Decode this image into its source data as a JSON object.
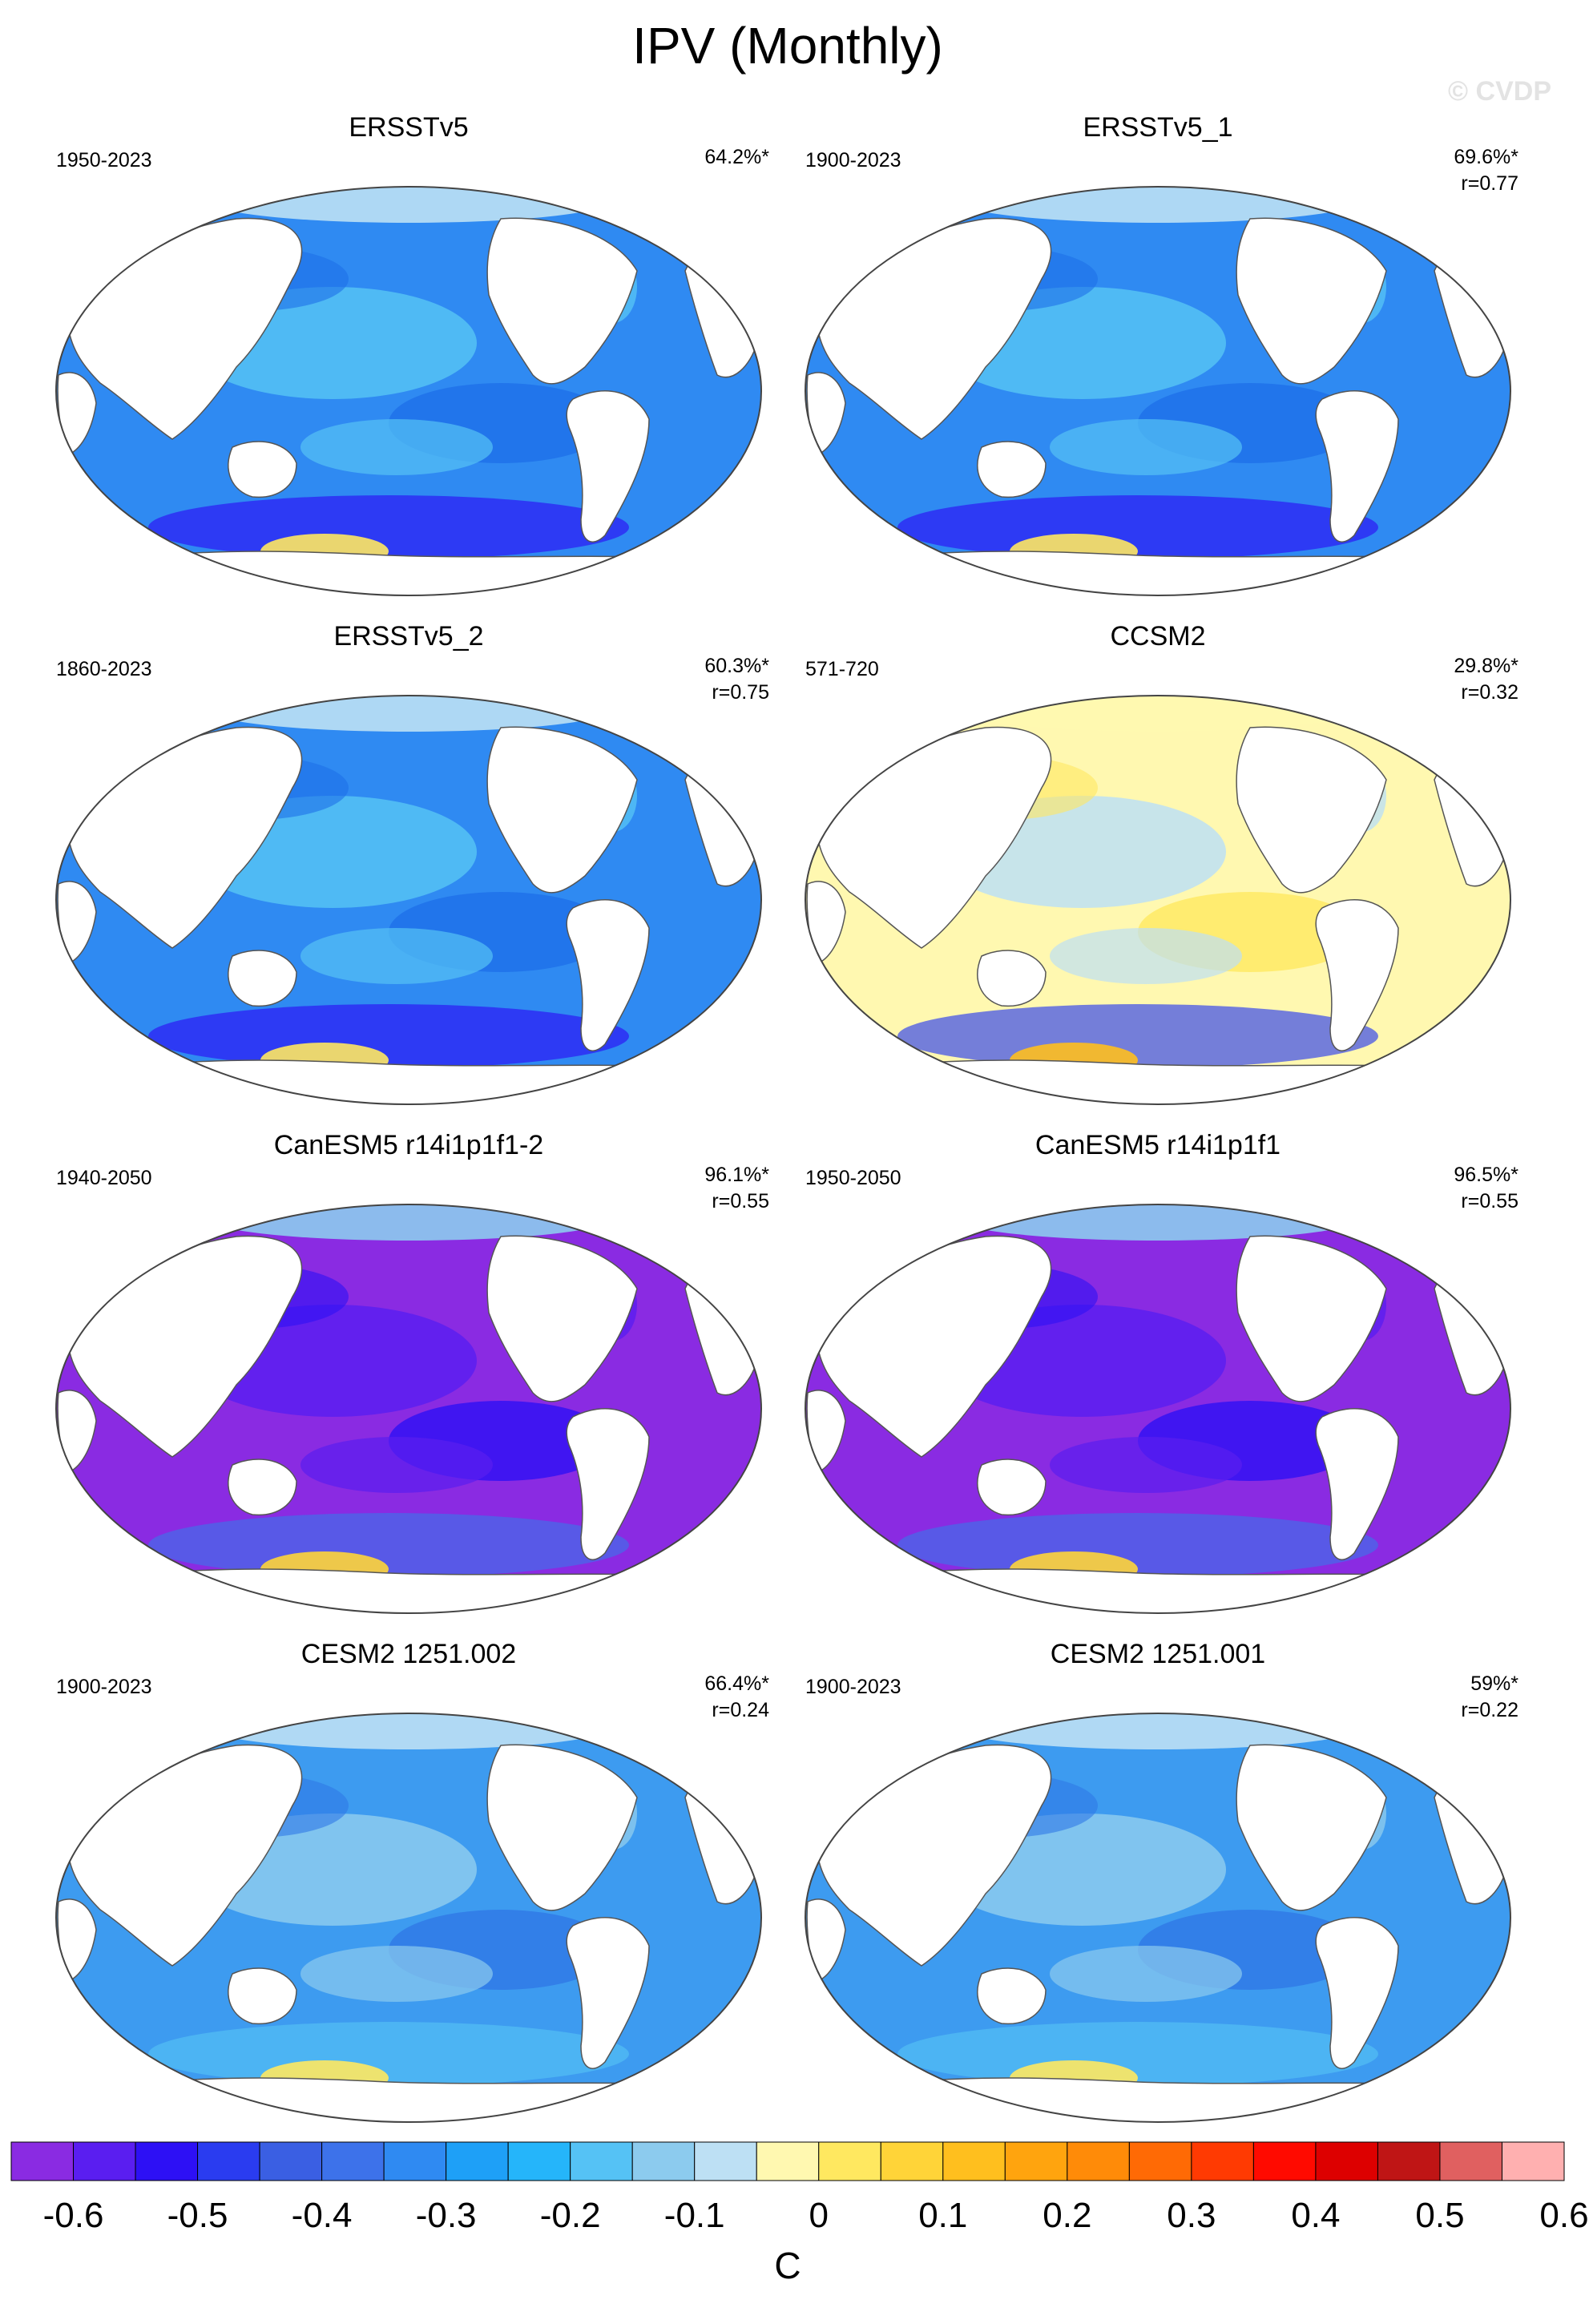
{
  "title": "IPV (Monthly)",
  "watermark": "© CVDP",
  "panels": [
    {
      "name": "ERSSTv5",
      "years": "1950-2023",
      "pct": "64.2%*",
      "r": "",
      "theme": "blue"
    },
    {
      "name": "ERSSTv5_1",
      "years": "1900-2023",
      "pct": "69.6%*",
      "r": "r=0.77",
      "theme": "blue"
    },
    {
      "name": "ERSSTv5_2",
      "years": "1860-2023",
      "pct": "60.3%*",
      "r": "r=0.75",
      "theme": "blue"
    },
    {
      "name": "CCSM2",
      "years": "571-720",
      "pct": "29.8%*",
      "r": "r=0.32",
      "theme": "yellow"
    },
    {
      "name": "CanESM5 r14i1p1f1-2",
      "years": "1940-2050",
      "pct": "96.1%*",
      "r": "r=0.55",
      "theme": "purple"
    },
    {
      "name": "CanESM5 r14i1p1f1",
      "years": "1950-2050",
      "pct": "96.5%*",
      "r": "r=0.55",
      "theme": "purple"
    },
    {
      "name": "CESM2 1251.002",
      "years": "1900-2023",
      "pct": "66.4%*",
      "r": "r=0.24",
      "theme": "lightblue"
    },
    {
      "name": "CESM2 1251.001",
      "years": "1900-2023",
      "pct": "59%*",
      "r": "r=0.22",
      "theme": "lightblue"
    }
  ],
  "colorbar": {
    "colors": [
      "#8a2be2",
      "#5a1ef0",
      "#2d10f5",
      "#2a3cf0",
      "#3a5fe3",
      "#3d72ea",
      "#2f8af2",
      "#1ea0f7",
      "#25b5fa",
      "#55c2f5",
      "#8ccbee",
      "#bde0f4",
      "#fff8b0",
      "#ffe860",
      "#ffd438",
      "#ffbf1e",
      "#ffa40e",
      "#ff8b08",
      "#ff6a05",
      "#ff3a02",
      "#ff0a00",
      "#dd0000",
      "#bf1515",
      "#e06060",
      "#ffb0b0"
    ],
    "ticks": [
      "-0.6",
      "-0.5",
      "-0.4",
      "-0.3",
      "-0.2",
      "-0.1",
      "0",
      "0.1",
      "0.2",
      "0.3",
      "0.4",
      "0.5",
      "0.6"
    ],
    "unit": "C"
  }
}
